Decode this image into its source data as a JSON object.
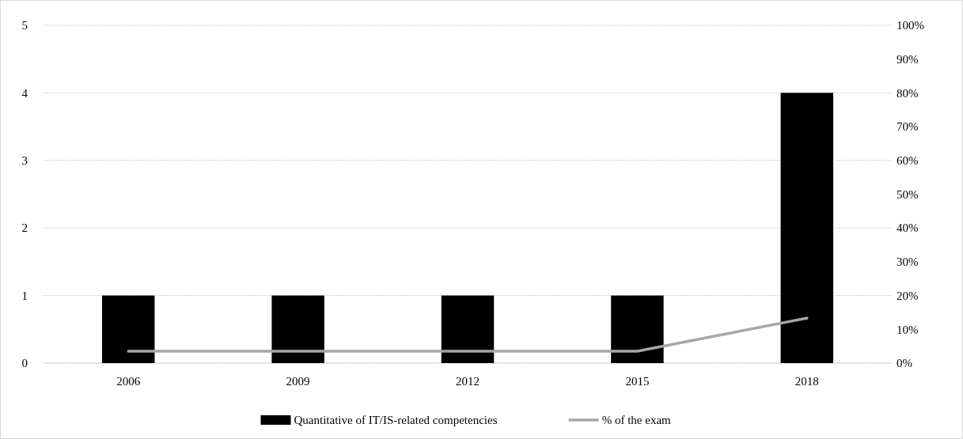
{
  "chart_data": {
    "type": "bar",
    "categories": [
      "2006",
      "2009",
      "2012",
      "2015",
      "2018"
    ],
    "series": [
      {
        "name": "Quantitative of IT/IS-related competencies",
        "color": "#000000",
        "values": [
          1,
          1,
          1,
          1,
          4
        ]
      },
      {
        "name": "% of the exam",
        "type": "line",
        "axis": "y2",
        "color": "#a6a6a6",
        "values": [
          3.5,
          3.5,
          3.5,
          3.5,
          13.3
        ]
      }
    ],
    "ylim": [
      0,
      5
    ],
    "yticks": [
      0,
      1,
      2,
      3,
      4,
      5
    ],
    "y2lim": [
      0,
      100
    ],
    "y2ticks": [
      {
        "value": 0,
        "label": "0%"
      },
      {
        "value": 10,
        "label": "10%"
      },
      {
        "value": 20,
        "label": "20%"
      },
      {
        "value": 30,
        "label": "30%"
      },
      {
        "value": 40,
        "label": "40%"
      },
      {
        "value": 50,
        "label": "50%"
      },
      {
        "value": 60,
        "label": "60%"
      },
      {
        "value": 70,
        "label": "70%"
      },
      {
        "value": 80,
        "label": "80%"
      },
      {
        "value": 90,
        "label": "90%"
      },
      {
        "value": 100,
        "label": "100%"
      }
    ],
    "grid": "y",
    "legend": "bottom",
    "marker": "none",
    "line_style": "solid"
  }
}
